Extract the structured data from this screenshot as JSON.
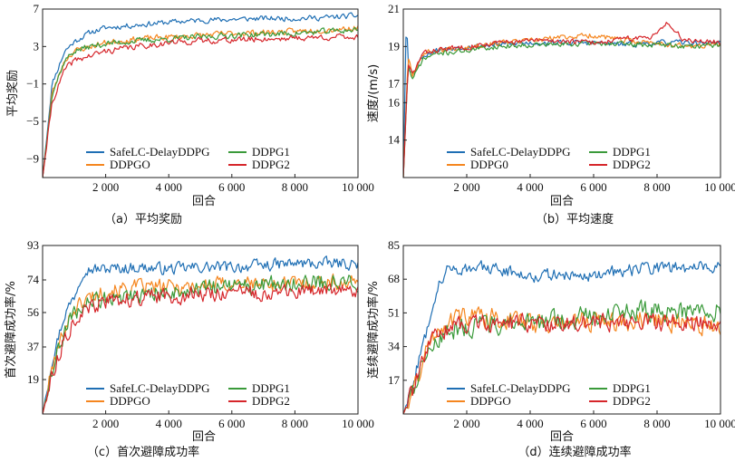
{
  "colors": {
    "SafeLC-DelayDDPG": "#1f6fb4",
    "DDPG1": "#3a9a3a",
    "DDPG0": "#f5861f",
    "DDPG2": "#d6262b"
  },
  "chart_data": [
    {
      "type": "line",
      "caption": "（a）平均奖励",
      "xlabel": "回合",
      "ylabel": "平均奖励",
      "xlim": [
        0,
        10000
      ],
      "ylim": [
        -11,
        7
      ],
      "xticks": [
        2000,
        4000,
        6000,
        8000,
        10000
      ],
      "xtick_labels": [
        "2 000",
        "4 000",
        "6 000",
        "8 000",
        "10 000"
      ],
      "yticks": [
        -9,
        -5,
        -1,
        3,
        7
      ],
      "ytick_labels": [
        "−9",
        "−5",
        "−1",
        "3",
        "7"
      ],
      "legend": [
        "SafeLC-DelayDDPG",
        "DDPGO",
        "DDPG1",
        "DDPG2"
      ],
      "series": [
        {
          "name": "SafeLC-DelayDDPG",
          "color_key": "SafeLC-DelayDDPG",
          "start": -11,
          "x": [
            0,
            300,
            700,
            1000,
            1500,
            2000,
            3000,
            4000,
            5000,
            6000,
            7000,
            8000,
            9000,
            10000
          ],
          "y": [
            -11,
            -1,
            2.5,
            3.5,
            4.5,
            5.0,
            5.3,
            5.6,
            5.8,
            5.9,
            6.0,
            6.0,
            6.1,
            6.3
          ],
          "noise": 0.4,
          "seed": 11
        },
        {
          "name": "DDPGO",
          "color_key": "DDPG0",
          "start": -11,
          "x": [
            0,
            300,
            700,
            1000,
            1500,
            2000,
            3000,
            4000,
            5000,
            6000,
            7000,
            8000,
            9000,
            10000
          ],
          "y": [
            -11,
            -2,
            1.5,
            2.5,
            3.0,
            3.4,
            3.8,
            4.0,
            4.2,
            4.4,
            4.5,
            4.6,
            4.8,
            5.0
          ],
          "noise": 0.45,
          "seed": 23
        },
        {
          "name": "DDPG1",
          "color_key": "DDPG1",
          "start": -11,
          "x": [
            0,
            300,
            700,
            1000,
            1500,
            2000,
            3000,
            4000,
            5000,
            6000,
            7000,
            8000,
            9000,
            10000
          ],
          "y": [
            -11,
            -2,
            1.5,
            2.5,
            3.0,
            3.3,
            3.6,
            3.8,
            4.0,
            4.2,
            4.3,
            4.4,
            4.6,
            4.8
          ],
          "noise": 0.45,
          "seed": 37
        },
        {
          "name": "DDPG2",
          "color_key": "DDPG2",
          "start": -11,
          "x": [
            0,
            300,
            700,
            1000,
            1500,
            2000,
            3000,
            4000,
            5000,
            6000,
            7000,
            8000,
            9000,
            10000
          ],
          "y": [
            -11,
            -3,
            0.5,
            1.5,
            2.0,
            2.5,
            3.0,
            3.4,
            3.6,
            3.7,
            3.8,
            3.9,
            4.0,
            4.0
          ],
          "noise": 0.45,
          "seed": 41
        }
      ]
    },
    {
      "type": "line",
      "caption": "（b）平均速度",
      "xlabel": "回合",
      "ylabel": "速度/(m/s)",
      "xlim": [
        0,
        10000
      ],
      "ylim": [
        12,
        21
      ],
      "xticks": [
        2000,
        4000,
        6000,
        8000,
        10000
      ],
      "xtick_labels": [
        "2 000",
        "4 000",
        "6 000",
        "8 000",
        "10 000"
      ],
      "yticks": [
        14,
        16,
        17,
        19,
        21
      ],
      "ytick_labels": [
        "14",
        "16",
        "17",
        "19",
        "21"
      ],
      "legend": [
        "SafeLC-DelayDDPG",
        "DDPG0",
        "DDPG1",
        "DDPG2"
      ],
      "series": [
        {
          "name": "SafeLC-DelayDDPG",
          "color_key": "SafeLC-DelayDDPG",
          "start": 12,
          "x": [
            0,
            100,
            150,
            300,
            600,
            1000,
            2000,
            3000,
            4000,
            5000,
            6000,
            7000,
            8000,
            9000,
            10000
          ],
          "y": [
            12,
            21,
            18,
            17.5,
            18.5,
            18.8,
            19.0,
            19.1,
            19.2,
            19.2,
            19.2,
            19.1,
            19.2,
            19.2,
            19.2
          ],
          "noise": 0.2,
          "seed": 53
        },
        {
          "name": "DDPG0",
          "color_key": "DDPG0",
          "start": 12,
          "x": [
            0,
            150,
            300,
            600,
            1000,
            2000,
            3000,
            4000,
            5000,
            6000,
            7000,
            8000,
            9000,
            10000
          ],
          "y": [
            12,
            18.5,
            17.5,
            18.6,
            18.8,
            19.0,
            19.2,
            19.3,
            19.5,
            19.6,
            19.3,
            19.2,
            19.0,
            19.1
          ],
          "noise": 0.2,
          "seed": 67
        },
        {
          "name": "DDPG1",
          "color_key": "DDPG1",
          "start": 12,
          "x": [
            0,
            150,
            300,
            600,
            1000,
            2000,
            3000,
            4000,
            5000,
            6000,
            7000,
            8000,
            9000,
            10000
          ],
          "y": [
            12,
            18,
            17.2,
            18.3,
            18.6,
            18.8,
            19.0,
            19.1,
            19.1,
            19.2,
            19.1,
            19.1,
            19.0,
            19.1
          ],
          "noise": 0.2,
          "seed": 71
        },
        {
          "name": "DDPG2",
          "color_key": "DDPG2",
          "start": 12,
          "x": [
            0,
            150,
            300,
            600,
            1000,
            2000,
            3000,
            4000,
            5000,
            6000,
            7000,
            7800,
            8300,
            8800,
            9500,
            10000
          ],
          "y": [
            12,
            18,
            17.5,
            18.6,
            18.8,
            19.0,
            19.2,
            19.3,
            19.3,
            19.2,
            19.4,
            19.5,
            20.3,
            19.4,
            19.3,
            19.2
          ],
          "noise": 0.2,
          "seed": 83
        }
      ]
    },
    {
      "type": "line",
      "caption": "（c）首次避障成功率",
      "xlabel": "回合",
      "ylabel": "首次避障成功率/%",
      "xlim": [
        0,
        10000
      ],
      "ylim": [
        0,
        93
      ],
      "xticks": [
        2000,
        4000,
        6000,
        8000,
        10000
      ],
      "xtick_labels": [
        "2 000",
        "4 000",
        "6 000",
        "8 000",
        "10 000"
      ],
      "yticks": [
        19,
        37,
        56,
        74,
        93
      ],
      "ytick_labels": [
        "19",
        "37",
        "56",
        "74",
        "93"
      ],
      "legend": [
        "SafeLC-DelayDDPG",
        "DDPGO",
        "DDPG1",
        "DDPG2"
      ],
      "series": [
        {
          "name": "SafeLC-DelayDDPG",
          "color_key": "SafeLC-DelayDDPG",
          "start": 0,
          "x": [
            0,
            300,
            700,
            1000,
            1300,
            2000,
            3000,
            4000,
            5000,
            6000,
            7000,
            8000,
            9000,
            10000
          ],
          "y": [
            0,
            30,
            55,
            65,
            80,
            80,
            81,
            80,
            81,
            81,
            82,
            83,
            83,
            83
          ],
          "noise": 4.5,
          "seed": 97
        },
        {
          "name": "DDPGO",
          "color_key": "DDPG0",
          "start": 0,
          "x": [
            0,
            300,
            700,
            1000,
            1500,
            2000,
            3000,
            4000,
            5000,
            6000,
            7000,
            8000,
            9000,
            10000
          ],
          "y": [
            0,
            25,
            48,
            58,
            65,
            68,
            70,
            70,
            71,
            72,
            72,
            72,
            73,
            72
          ],
          "noise": 6,
          "seed": 101
        },
        {
          "name": "DDPG1",
          "color_key": "DDPG1",
          "start": 0,
          "x": [
            0,
            300,
            700,
            1000,
            1500,
            2000,
            3000,
            4000,
            5000,
            6000,
            7000,
            8000,
            9000,
            10000
          ],
          "y": [
            0,
            25,
            45,
            55,
            62,
            64,
            66,
            67,
            69,
            70,
            71,
            72,
            73,
            73
          ],
          "noise": 6.5,
          "seed": 109
        },
        {
          "name": "DDPG2",
          "color_key": "DDPG2",
          "start": 0,
          "x": [
            0,
            300,
            700,
            1000,
            1500,
            2000,
            3000,
            4000,
            5000,
            6000,
            7000,
            8000,
            9000,
            10000
          ],
          "y": [
            0,
            22,
            42,
            52,
            58,
            62,
            64,
            65,
            66,
            67,
            67,
            67,
            68,
            68
          ],
          "noise": 6,
          "seed": 113
        }
      ]
    },
    {
      "type": "line",
      "caption": "（d）连续避障成功率",
      "xlabel": "回合",
      "ylabel": "连续避障成功率/%",
      "xlim": [
        0,
        10000
      ],
      "ylim": [
        0,
        85
      ],
      "xticks": [
        2000,
        4000,
        6000,
        8000,
        10000
      ],
      "xtick_labels": [
        "2 000",
        "4 000",
        "6 000",
        "8 000",
        "10 000"
      ],
      "yticks": [
        17,
        34,
        51,
        68,
        85
      ],
      "ytick_labels": [
        "17",
        "34",
        "51",
        "68",
        "85"
      ],
      "legend": [
        "SafeLC-DelayDDPG",
        "DDPGO",
        "DDPG1",
        "DDPG2"
      ],
      "series": [
        {
          "name": "SafeLC-DelayDDPG",
          "color_key": "SafeLC-DelayDDPG",
          "start": 0,
          "x": [
            0,
            300,
            700,
            1000,
            1300,
            2000,
            3000,
            4000,
            5000,
            6000,
            7000,
            8000,
            9000,
            10000
          ],
          "y": [
            0,
            15,
            40,
            60,
            72,
            74,
            73,
            70,
            70,
            70,
            72,
            74,
            74,
            75
          ],
          "noise": 4.5,
          "seed": 127
        },
        {
          "name": "DDPGO",
          "color_key": "DDPG0",
          "start": 0,
          "x": [
            0,
            300,
            700,
            1000,
            1500,
            2000,
            3000,
            4000,
            5000,
            6000,
            7000,
            8000,
            9000,
            10000
          ],
          "y": [
            0,
            12,
            30,
            42,
            48,
            50,
            48,
            46,
            46,
            47,
            47,
            47,
            46,
            44
          ],
          "noise": 7,
          "seed": 131
        },
        {
          "name": "DDPG1",
          "color_key": "DDPG1",
          "start": 0,
          "x": [
            0,
            300,
            700,
            1000,
            1500,
            2000,
            3000,
            4000,
            5000,
            6000,
            7000,
            8000,
            9000,
            10000
          ],
          "y": [
            0,
            12,
            30,
            38,
            42,
            44,
            45,
            46,
            47,
            50,
            52,
            52,
            52,
            52
          ],
          "noise": 7,
          "seed": 137
        },
        {
          "name": "DDPG2",
          "color_key": "DDPG2",
          "start": 0,
          "x": [
            0,
            300,
            700,
            1000,
            1500,
            2000,
            3000,
            4000,
            5000,
            6000,
            7000,
            8000,
            9000,
            10000
          ],
          "y": [
            0,
            12,
            30,
            40,
            44,
            46,
            46,
            46,
            46,
            46,
            46,
            46,
            46,
            46
          ],
          "noise": 6,
          "seed": 139
        }
      ]
    }
  ]
}
